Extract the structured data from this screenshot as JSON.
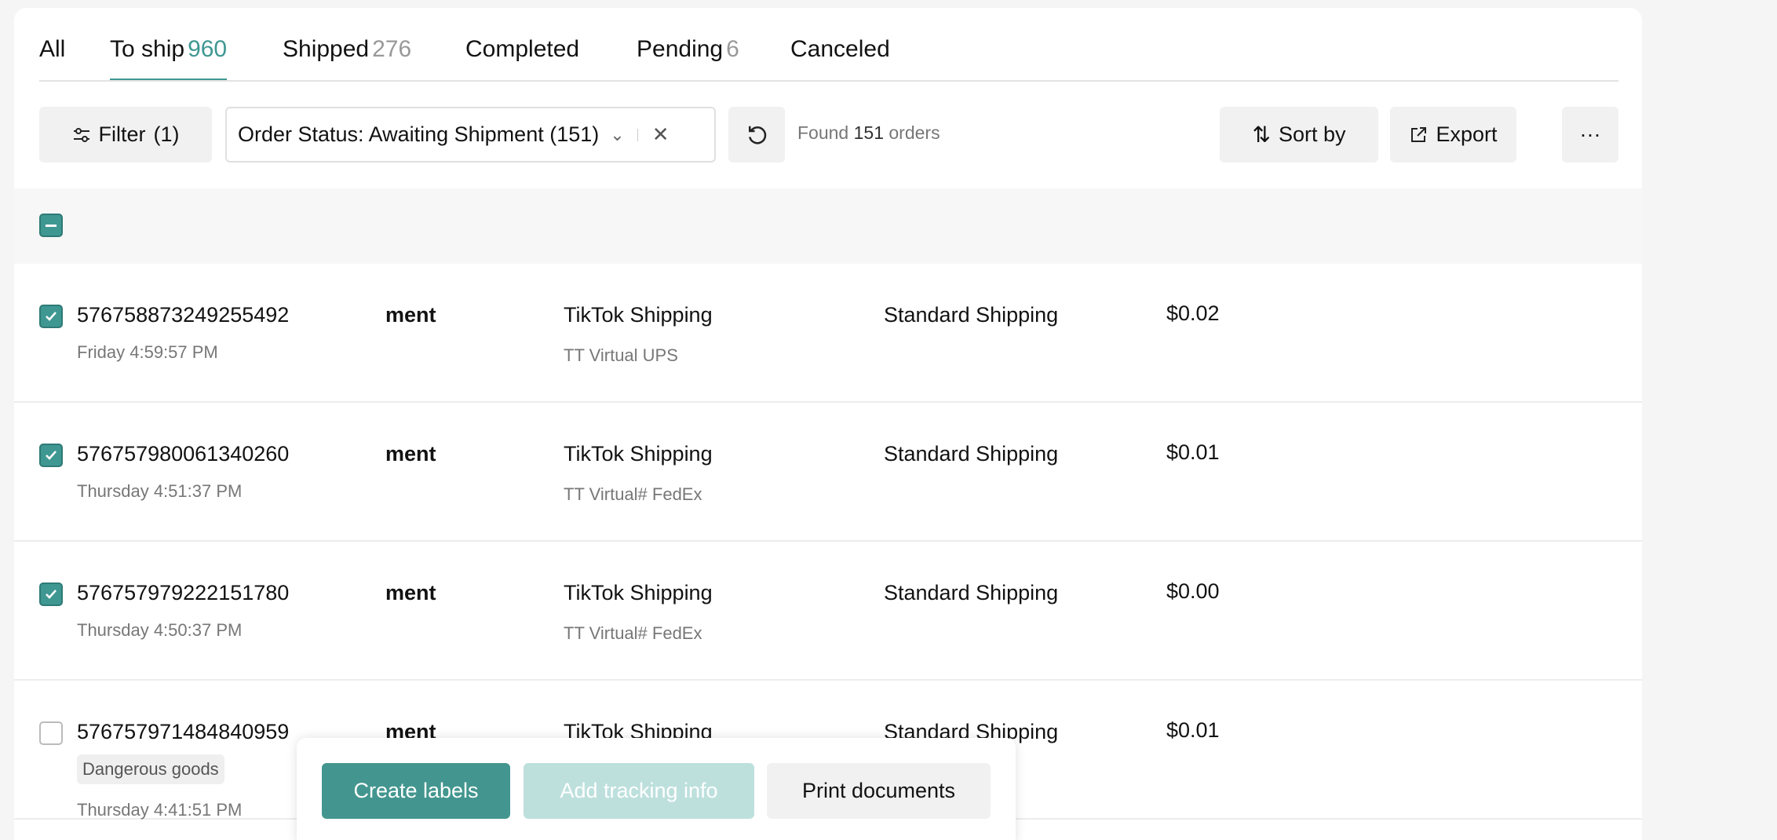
{
  "tabs": [
    {
      "label": "All",
      "count": null
    },
    {
      "label": "To ship",
      "count": "960",
      "active": true
    },
    {
      "label": "Shipped",
      "count": "276"
    },
    {
      "label": "Completed",
      "count": null
    },
    {
      "label": "Pending",
      "count": "6"
    },
    {
      "label": "Canceled",
      "count": null
    }
  ],
  "toolbar": {
    "filter_label": "Filter",
    "filter_count": "(1)",
    "status_select": "Order Status:  Awaiting Shipment (151)",
    "found_prefix": "Found",
    "found_count": "151",
    "found_suffix": "orders",
    "sort_label": "Sort by",
    "export_label": "Export",
    "more_label": "···"
  },
  "colors": {
    "accent": "#3f9792",
    "accent_disabled": "#bde0dd"
  },
  "orders": [
    {
      "id": "576758873249255492",
      "time": "Friday 4:59:57 PM",
      "col2": "ment",
      "provider": "TikTok Shipping",
      "carrier": "TT Virtual UPS",
      "service": "Standard Shipping",
      "price": "$0.02",
      "checked": true
    },
    {
      "id": "576757980061340260",
      "time": "Thursday 4:51:37 PM",
      "col2": "ment",
      "provider": "TikTok Shipping",
      "carrier": "TT Virtual# FedEx",
      "service": "Standard Shipping",
      "price": "$0.01",
      "checked": true
    },
    {
      "id": "576757979222151780",
      "time": "Thursday 4:50:37 PM",
      "col2": "ment",
      "provider": "TikTok Shipping",
      "carrier": "TT Virtual# FedEx",
      "service": "Standard Shipping",
      "price": "$0.00",
      "checked": true
    },
    {
      "id": "576757971484840959",
      "badge": "Dangerous goods",
      "time": "Thursday 4:41:51 PM",
      "col2": "ment",
      "provider": "TikTok Shipping",
      "service": "Standard Shipping",
      "price": "$0.01",
      "checked": false
    }
  ],
  "actions": {
    "create": "Create labels",
    "tracking": "Add tracking info",
    "print": "Print documents"
  }
}
